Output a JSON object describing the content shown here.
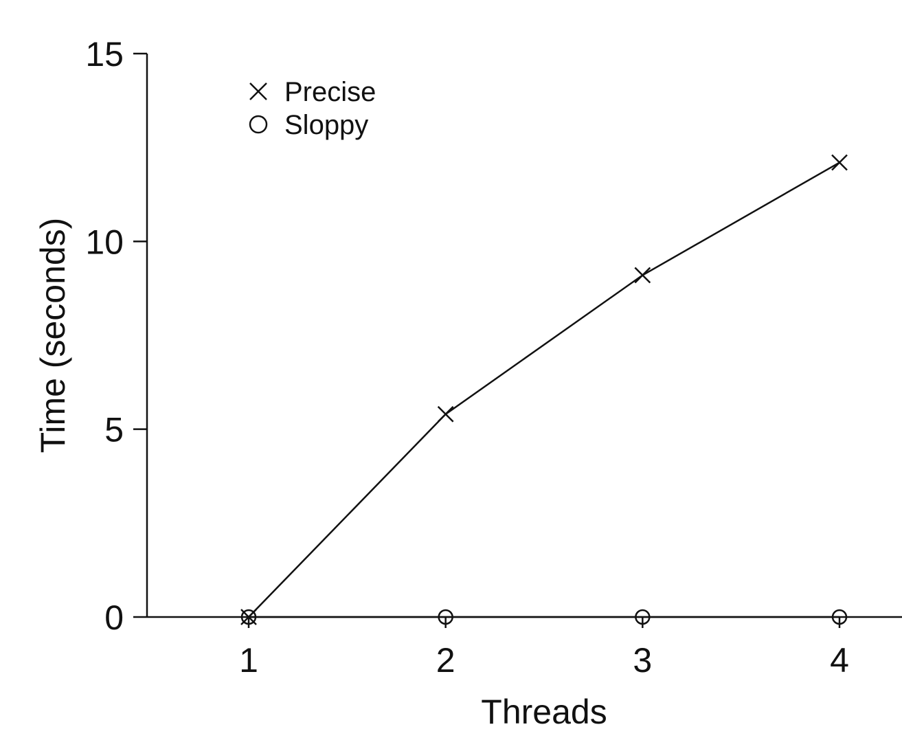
{
  "chart_data": {
    "type": "line",
    "title": "",
    "xlabel": "Threads",
    "ylabel": "Time (seconds)",
    "x": [
      1,
      2,
      3,
      4
    ],
    "xticks": [
      1,
      2,
      3,
      4
    ],
    "yticks": [
      0,
      5,
      10,
      15
    ],
    "xlim": [
      0.5,
      4.3
    ],
    "ylim": [
      0,
      15
    ],
    "grid": false,
    "legend_position": "top-left",
    "series": [
      {
        "name": "Precise",
        "marker": "x",
        "values": [
          0.0,
          5.4,
          9.1,
          12.1
        ]
      },
      {
        "name": "Sloppy",
        "marker": "o",
        "values": [
          0.0,
          0.0,
          0.0,
          0.0
        ]
      }
    ]
  }
}
